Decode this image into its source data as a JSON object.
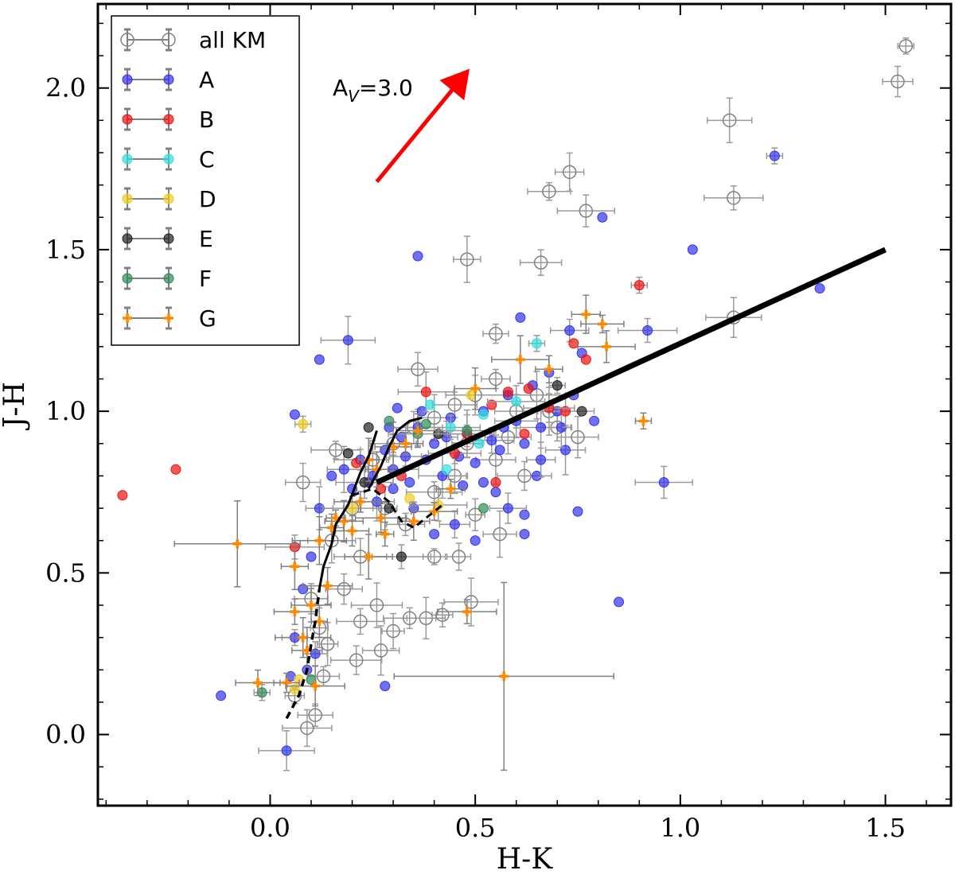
{
  "chart_data": {
    "type": "scatter",
    "title": "",
    "xlabel": "H-K",
    "ylabel": "J-H",
    "xlim": [
      -0.42,
      1.66
    ],
    "ylim": [
      -0.22,
      2.26
    ],
    "xticks": [
      0.0,
      0.5,
      1.0,
      1.5
    ],
    "xtick_labels": [
      "0.0",
      "0.5",
      "1.0",
      "1.5"
    ],
    "yticks": [
      0.0,
      0.5,
      1.0,
      1.5,
      2.0
    ],
    "ytick_labels": [
      "0.0",
      "0.5",
      "1.0",
      "1.5",
      "2.0"
    ],
    "legend_position": "upper-left",
    "annotation": {
      "text_main": "A",
      "text_sub": "V",
      "text_tail": "=3.0",
      "arrow_from": [
        0.26,
        1.71
      ],
      "arrow_to": [
        0.48,
        2.05
      ],
      "color": "#ff0000"
    },
    "series": [
      {
        "name": "all KM",
        "color": "#808080",
        "marker": "open-circle",
        "points": [
          [
            1.55,
            2.13
          ],
          [
            1.53,
            2.02
          ],
          [
            1.12,
            1.9
          ],
          [
            1.13,
            1.66
          ],
          [
            0.73,
            1.74
          ],
          [
            0.68,
            1.68
          ],
          [
            0.77,
            1.62
          ],
          [
            0.48,
            1.47
          ],
          [
            0.66,
            1.46
          ],
          [
            1.13,
            1.29
          ],
          [
            0.55,
            1.24
          ],
          [
            0.36,
            1.13
          ],
          [
            0.49,
            0.41
          ],
          [
            0.46,
            0.55
          ],
          [
            0.38,
            0.36
          ],
          [
            0.34,
            0.36
          ],
          [
            0.3,
            0.32
          ],
          [
            0.27,
            0.26
          ],
          [
            0.21,
            0.23
          ],
          [
            0.14,
            0.28
          ],
          [
            0.11,
            0.06
          ],
          [
            0.09,
            0.02
          ],
          [
            0.06,
            0.12
          ],
          [
            0.1,
            0.42
          ],
          [
            0.15,
            0.6
          ],
          [
            0.2,
            0.7
          ],
          [
            0.25,
            0.85
          ],
          [
            0.3,
            0.9
          ],
          [
            0.35,
            0.95
          ],
          [
            0.4,
            0.98
          ],
          [
            0.45,
            1.02
          ],
          [
            0.5,
            1.05
          ],
          [
            0.55,
            1.1
          ],
          [
            0.6,
            1.0
          ],
          [
            0.65,
            1.05
          ],
          [
            0.7,
            0.95
          ],
          [
            0.75,
            0.92
          ],
          [
            0.4,
            0.75
          ],
          [
            0.45,
            0.8
          ],
          [
            0.55,
            0.85
          ],
          [
            0.62,
            0.8
          ],
          [
            0.28,
            0.7
          ],
          [
            0.33,
            0.65
          ],
          [
            0.22,
            0.55
          ],
          [
            0.4,
            0.55
          ],
          [
            0.18,
            0.45
          ],
          [
            0.26,
            0.4
          ],
          [
            0.42,
            0.37
          ],
          [
            0.08,
            0.78
          ],
          [
            0.16,
            0.88
          ],
          [
            0.5,
            0.68
          ],
          [
            0.56,
            0.62
          ],
          [
            0.22,
            0.35
          ],
          [
            0.12,
            0.33
          ],
          [
            0.13,
            0.18
          ],
          [
            0.58,
            0.92
          ],
          [
            0.68,
            1.0
          ],
          [
            0.48,
            0.9
          ]
        ]
      },
      {
        "name": "A",
        "color": "#3333ee",
        "marker": "filled-circle",
        "points": [
          [
            1.23,
            1.79
          ],
          [
            1.03,
            1.5
          ],
          [
            0.81,
            1.6
          ],
          [
            0.92,
            1.25
          ],
          [
            1.34,
            1.38
          ],
          [
            0.36,
            1.48
          ],
          [
            0.96,
            0.78
          ],
          [
            0.85,
            0.41
          ],
          [
            0.75,
            0.69
          ],
          [
            0.04,
            -0.05
          ],
          [
            -0.12,
            0.12
          ],
          [
            0.28,
            0.15
          ],
          [
            0.19,
            1.22
          ],
          [
            0.12,
            1.16
          ],
          [
            0.06,
            0.99
          ],
          [
            0.22,
            0.85
          ],
          [
            0.25,
            0.8
          ],
          [
            0.28,
            0.88
          ],
          [
            0.3,
            0.82
          ],
          [
            0.32,
            0.92
          ],
          [
            0.34,
            0.78
          ],
          [
            0.36,
            0.95
          ],
          [
            0.38,
            0.85
          ],
          [
            0.4,
            0.9
          ],
          [
            0.42,
            0.8
          ],
          [
            0.44,
            0.98
          ],
          [
            0.46,
            0.86
          ],
          [
            0.48,
            0.93
          ],
          [
            0.5,
            0.84
          ],
          [
            0.52,
            1.0
          ],
          [
            0.54,
            0.91
          ],
          [
            0.56,
            0.88
          ],
          [
            0.58,
            1.05
          ],
          [
            0.6,
            0.97
          ],
          [
            0.62,
            0.9
          ],
          [
            0.64,
            1.08
          ],
          [
            0.66,
            0.95
          ],
          [
            0.68,
            1.12
          ],
          [
            0.7,
            1.0
          ],
          [
            0.72,
            0.88
          ],
          [
            0.74,
            1.05
          ],
          [
            0.76,
            1.18
          ],
          [
            0.73,
            1.25
          ],
          [
            0.61,
            1.29
          ],
          [
            0.55,
            0.75
          ],
          [
            0.58,
            0.7
          ],
          [
            0.62,
            0.68
          ],
          [
            0.65,
            0.8
          ],
          [
            0.26,
            0.72
          ],
          [
            0.24,
            0.78
          ],
          [
            0.2,
            0.76
          ],
          [
            0.18,
            0.82
          ],
          [
            0.3,
            0.76
          ],
          [
            0.35,
            0.7
          ],
          [
            0.33,
            0.86
          ],
          [
            0.29,
            0.95
          ],
          [
            0.4,
            0.62
          ],
          [
            0.45,
            0.65
          ],
          [
            0.5,
            0.6
          ],
          [
            0.62,
            0.62
          ],
          [
            0.66,
            0.85
          ],
          [
            0.52,
            0.78
          ],
          [
            0.15,
            0.8
          ],
          [
            0.12,
            0.7
          ],
          [
            0.1,
            0.55
          ],
          [
            0.08,
            0.45
          ],
          [
            0.06,
            0.3
          ],
          [
            0.05,
            0.18
          ],
          [
            0.09,
            0.2
          ],
          [
            0.11,
            0.25
          ],
          [
            0.57,
            0.95
          ],
          [
            0.47,
            0.77
          ],
          [
            0.43,
            0.92
          ],
          [
            0.37,
            1.0
          ],
          [
            0.31,
            1.01
          ],
          [
            0.71,
            0.95
          ],
          [
            0.79,
            0.97
          ]
        ]
      },
      {
        "name": "B",
        "color": "#ee1111",
        "marker": "filled-circle",
        "points": [
          [
            0.9,
            1.39
          ],
          [
            -0.36,
            0.74
          ],
          [
            -0.23,
            0.82
          ],
          [
            0.06,
            0.58
          ],
          [
            0.77,
            1.16
          ],
          [
            0.74,
            1.21
          ],
          [
            0.72,
            1.0
          ],
          [
            0.58,
            1.06
          ],
          [
            0.54,
            1.02
          ],
          [
            0.38,
            1.06
          ],
          [
            0.32,
            0.8
          ],
          [
            0.21,
            0.84
          ],
          [
            0.48,
            0.93
          ],
          [
            0.55,
            0.78
          ],
          [
            0.63,
            1.07
          ],
          [
            0.45,
            0.87
          ],
          [
            0.27,
            0.76
          ],
          [
            0.62,
            0.93
          ],
          [
            0.68,
            1.01
          ]
        ]
      },
      {
        "name": "C",
        "color": "#33dddd",
        "marker": "filled-circle",
        "points": [
          [
            0.65,
            1.21
          ],
          [
            0.39,
            1.02
          ],
          [
            0.52,
            0.99
          ],
          [
            0.44,
            0.95
          ],
          [
            0.51,
            0.9
          ],
          [
            0.43,
            0.82
          ],
          [
            0.6,
            1.03
          ]
        ]
      },
      {
        "name": "D",
        "color": "#eecc22",
        "marker": "filled-circle",
        "points": [
          [
            0.08,
            0.96
          ],
          [
            0.07,
            0.17
          ],
          [
            0.06,
            0.14
          ],
          [
            0.2,
            0.7
          ],
          [
            0.34,
            0.73
          ],
          [
            0.49,
            1.05
          ],
          [
            0.41,
            0.71
          ]
        ]
      },
      {
        "name": "E",
        "color": "#222222",
        "marker": "filled-circle",
        "points": [
          [
            0.7,
            1.08
          ],
          [
            0.76,
            1.0
          ],
          [
            0.24,
            0.95
          ],
          [
            0.32,
            0.55
          ],
          [
            0.29,
            0.7
          ],
          [
            0.19,
            0.87
          ],
          [
            0.23,
            0.78
          ],
          [
            0.41,
            0.93
          ]
        ]
      },
      {
        "name": "F",
        "color": "#2e8b57",
        "marker": "filled-circle",
        "points": [
          [
            -0.02,
            0.13
          ],
          [
            0.52,
            0.7
          ],
          [
            0.29,
            0.97
          ],
          [
            0.36,
            0.93
          ],
          [
            0.1,
            0.17
          ],
          [
            0.38,
            0.96
          ],
          [
            0.48,
            0.94
          ]
        ]
      },
      {
        "name": "G",
        "color": "#ff8800",
        "marker": "plus",
        "points": [
          [
            0.91,
            0.97
          ],
          [
            -0.08,
            0.59
          ],
          [
            0.57,
            0.18
          ],
          [
            0.48,
            0.38
          ],
          [
            0.77,
            1.3
          ],
          [
            0.81,
            1.27
          ],
          [
            0.82,
            1.2
          ],
          [
            0.06,
            0.52
          ],
          [
            0.06,
            0.38
          ],
          [
            0.08,
            0.3
          ],
          [
            0.04,
            0.16
          ],
          [
            0.1,
            0.4
          ],
          [
            0.12,
            0.6
          ],
          [
            0.15,
            0.64
          ],
          [
            0.18,
            0.66
          ],
          [
            0.22,
            0.72
          ],
          [
            0.26,
            0.82
          ],
          [
            0.3,
            0.89
          ],
          [
            0.27,
            0.67
          ],
          [
            0.24,
            0.85
          ],
          [
            0.33,
            0.9
          ],
          [
            0.14,
            0.46
          ],
          [
            0.16,
            0.67
          ],
          [
            0.2,
            0.63
          ],
          [
            0.24,
            0.55
          ],
          [
            0.28,
            0.62
          ],
          [
            0.35,
            0.66
          ],
          [
            0.4,
            0.69
          ],
          [
            0.12,
            0.35
          ],
          [
            0.09,
            0.26
          ],
          [
            -0.03,
            0.16
          ],
          [
            0.11,
            0.15
          ],
          [
            0.44,
            0.76
          ],
          [
            0.36,
            0.94
          ],
          [
            0.61,
            1.16
          ],
          [
            0.68,
            1.13
          ],
          [
            0.5,
            1.07
          ]
        ]
      }
    ],
    "lines": [
      {
        "name": "dwarf-locus-solid",
        "color": "#000000",
        "style": "solid",
        "width": 3,
        "points": [
          [
            0.12,
            0.45
          ],
          [
            0.13,
            0.52
          ],
          [
            0.15,
            0.59
          ],
          [
            0.16,
            0.65
          ],
          [
            0.19,
            0.71
          ],
          [
            0.22,
            0.81
          ],
          [
            0.24,
            0.86
          ],
          [
            0.25,
            0.9
          ],
          [
            0.26,
            0.94
          ]
        ]
      },
      {
        "name": "giant-locus-solid",
        "color": "#000000",
        "style": "solid",
        "width": 3,
        "points": [
          [
            0.24,
            0.76
          ],
          [
            0.27,
            0.83
          ],
          [
            0.29,
            0.89
          ],
          [
            0.31,
            0.94
          ],
          [
            0.34,
            0.97
          ],
          [
            0.37,
            0.98
          ]
        ]
      },
      {
        "name": "dwarf-locus-dashed",
        "color": "#000000",
        "style": "dashed",
        "width": 3.5,
        "points": [
          [
            0.04,
            0.05
          ],
          [
            0.07,
            0.12
          ],
          [
            0.09,
            0.2
          ],
          [
            0.1,
            0.28
          ],
          [
            0.11,
            0.35
          ],
          [
            0.12,
            0.45
          ]
        ]
      },
      {
        "name": "m-dwarf-dashed",
        "color": "#000000",
        "style": "dashed",
        "width": 3,
        "points": [
          [
            0.2,
            0.74
          ],
          [
            0.25,
            0.76
          ],
          [
            0.29,
            0.72
          ],
          [
            0.32,
            0.66
          ],
          [
            0.35,
            0.64
          ],
          [
            0.38,
            0.67
          ],
          [
            0.42,
            0.71
          ]
        ]
      },
      {
        "name": "ctts-locus",
        "color": "#000000",
        "style": "solid",
        "width": 7,
        "points": [
          [
            0.26,
            0.78
          ],
          [
            1.5,
            1.5
          ]
        ]
      }
    ]
  }
}
